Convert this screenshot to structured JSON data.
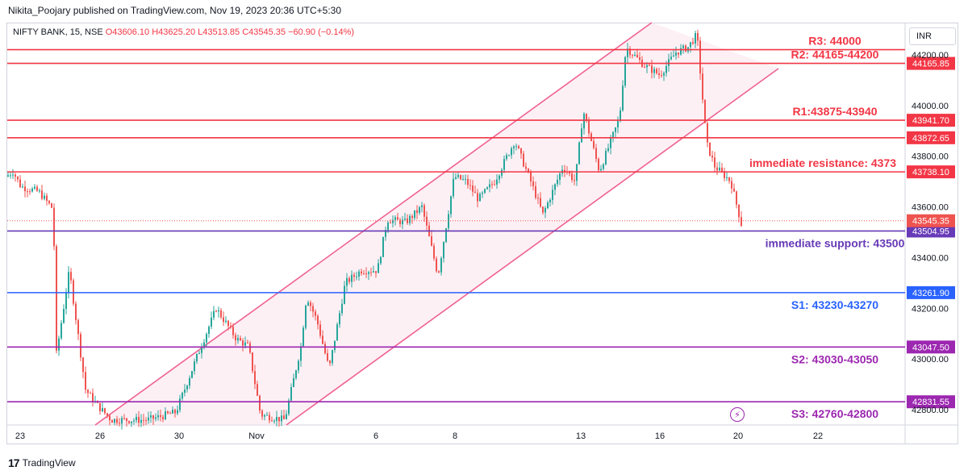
{
  "attribution": "Nikita_Poojary published on TradingView.com, Nov 19, 2023 20:36 UTC+5:30",
  "symbol": {
    "name": "NIFTY BANK, 15, NSE",
    "open": "O43606.10",
    "high": "H43625.20",
    "low": "L43513.85",
    "close": "C43545.35",
    "change": "−60.90 (−0.14%)"
  },
  "currency": "INR",
  "footer": {
    "logo_mark": "17",
    "brand": "TradingView"
  },
  "colors": {
    "resistance": "#f23645",
    "support_imm": "#673ab7",
    "s1": "#2962ff",
    "s2_s3": "#9c27b0",
    "channel": "#f06292",
    "channel_fill": "#fce4ec",
    "candle_up": "#26a69a",
    "candle_down": "#ef5350"
  },
  "chart_data": {
    "type": "candlestick",
    "x_tick_labels": [
      "23",
      "26",
      "30",
      "Nov",
      "6",
      "8",
      "13",
      "16",
      "20",
      "22"
    ],
    "y_tick_labels": [
      "42800.00",
      "43000.00",
      "43200.00",
      "43400.00",
      "43600.00",
      "43800.00",
      "44000.00",
      "44200.00"
    ],
    "ylim": [
      42740,
      44260
    ],
    "levels": [
      {
        "label": "R3: 44000",
        "price": 44220,
        "price_tag": "",
        "color": "#f23645"
      },
      {
        "label": "R2: 44165-44200",
        "price": 44165.85,
        "price_tag": "44165.85",
        "color": "#f23645"
      },
      {
        "label": "R1:43875-43940",
        "price": 43941.7,
        "price_tag": "43941.70",
        "color": "#f23645"
      },
      {
        "label": "",
        "price": 43872.65,
        "price_tag": "43872.65",
        "color": "#f23645"
      },
      {
        "label": "immediate resistance: 4373",
        "price": 43738.1,
        "price_tag": "43738.10",
        "color": "#f23645"
      },
      {
        "label": "immediate support: 43500",
        "price": 43504.95,
        "price_tag": "43504.95",
        "color": "#673ab7"
      },
      {
        "label": "S1: 43230-43270",
        "price": 43261.9,
        "price_tag": "43261.90",
        "color": "#2962ff"
      },
      {
        "label": "S2: 43030-43050",
        "price": 43047.5,
        "price_tag": "43047.50",
        "color": "#9c27b0"
      },
      {
        "label": "S3: 42760-42800",
        "price": 42831.55,
        "price_tag": "42831.55",
        "color": "#9c27b0"
      }
    ],
    "last_price": 43545.35,
    "last_price_tag": "43545.35",
    "price_path": [
      [
        0,
        43720
      ],
      [
        8,
        43740
      ],
      [
        18,
        43680
      ],
      [
        40,
        43660
      ],
      [
        58,
        43590
      ],
      [
        62,
        43020
      ],
      [
        78,
        43350
      ],
      [
        98,
        42880
      ],
      [
        112,
        42820
      ],
      [
        130,
        42760
      ],
      [
        175,
        42760
      ],
      [
        210,
        42790
      ],
      [
        235,
        43000
      ],
      [
        260,
        43200
      ],
      [
        285,
        43080
      ],
      [
        300,
        43050
      ],
      [
        315,
        42780
      ],
      [
        345,
        42760
      ],
      [
        365,
        43050
      ],
      [
        372,
        43250
      ],
      [
        385,
        43150
      ],
      [
        400,
        42960
      ],
      [
        420,
        43300
      ],
      [
        440,
        43350
      ],
      [
        460,
        43350
      ],
      [
        472,
        43550
      ],
      [
        495,
        43540
      ],
      [
        515,
        43600
      ],
      [
        535,
        43330
      ],
      [
        555,
        43720
      ],
      [
        570,
        43700
      ],
      [
        585,
        43630
      ],
      [
        605,
        43700
      ],
      [
        630,
        43860
      ],
      [
        650,
        43700
      ],
      [
        665,
        43570
      ],
      [
        690,
        43760
      ],
      [
        705,
        43700
      ],
      [
        715,
        43980
      ],
      [
        735,
        43740
      ],
      [
        760,
        43950
      ],
      [
        768,
        44230
      ],
      [
        790,
        44160
      ],
      [
        810,
        44120
      ],
      [
        830,
        44210
      ],
      [
        845,
        44230
      ],
      [
        856,
        44280
      ],
      [
        862,
        44060
      ],
      [
        868,
        43850
      ],
      [
        878,
        43760
      ],
      [
        898,
        43700
      ],
      [
        912,
        43520
      ]
    ]
  }
}
